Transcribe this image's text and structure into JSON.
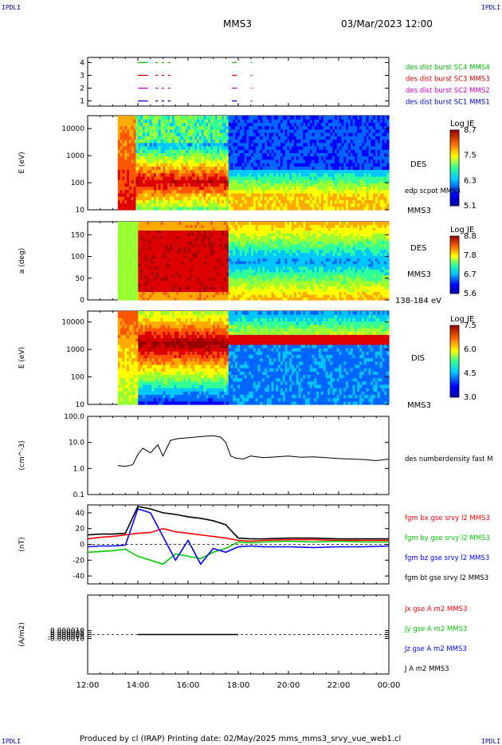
{
  "header": {
    "corner_left_top": "IPDLI",
    "corner_right_top": "IPDLI",
    "corner_left_bottom": "IPDLI",
    "corner_right_bottom": "IPDLI",
    "mission": "MMS3",
    "datetime": "03/Mar/2023 12:00"
  },
  "footer": {
    "produced": "Produced by cl (IRAP)   Printing date: 02/May/2025   mms_mms3_srvy_vue_web1.cl"
  },
  "colors": {
    "mms1": "#0000cc",
    "mms2": "#cc00cc",
    "mms3": "#dd0000",
    "mms4": "#00bb00",
    "bx": "#ff0000",
    "by": "#00cc00",
    "bz": "#0000ff",
    "bt": "#000000"
  },
  "chart_data": [
    {
      "id": "burst",
      "type": "scatter",
      "ylim": [
        0.6,
        4.4
      ],
      "yticks": [
        "1",
        "2",
        "3",
        "4"
      ],
      "series": [
        {
          "name": "des dist burst SC1 MMS1",
          "color": "#0000cc",
          "y": 1,
          "segments": [
            [
              14.0,
              14.4
            ],
            [
              14.7,
              14.8
            ],
            [
              14.95,
              15.05
            ],
            [
              15.2,
              15.3
            ],
            [
              17.75,
              17.95
            ],
            [
              18.5,
              18.55
            ]
          ]
        },
        {
          "name": "des dist burst SC2 MMS2",
          "color": "#cc00cc",
          "y": 2,
          "segments": [
            [
              14.0,
              14.4
            ],
            [
              14.7,
              14.8
            ],
            [
              14.95,
              15.05
            ],
            [
              15.2,
              15.3
            ],
            [
              17.75,
              17.95
            ],
            [
              18.5,
              18.55
            ]
          ]
        },
        {
          "name": "des dist burst SC3 MMS3",
          "color": "#dd0000",
          "y": 3,
          "segments": [
            [
              14.0,
              14.4
            ],
            [
              14.7,
              14.8
            ],
            [
              14.95,
              15.05
            ],
            [
              15.2,
              15.3
            ],
            [
              17.75,
              17.95
            ],
            [
              18.5,
              18.55
            ]
          ]
        },
        {
          "name": "des dist burst SC4 MMS4",
          "color": "#00bb00",
          "y": 4,
          "segments": [
            [
              14.0,
              14.4
            ],
            [
              14.7,
              14.8
            ],
            [
              14.95,
              15.05
            ],
            [
              15.2,
              15.3
            ],
            [
              17.75,
              17.95
            ],
            [
              18.5,
              18.55
            ]
          ]
        }
      ]
    },
    {
      "id": "des_energy",
      "type": "heatmap",
      "ylabel": "E (eV)",
      "yscale": "log",
      "ylim": [
        10,
        30000
      ],
      "yticks": [
        "10",
        "100",
        "1000",
        "10000"
      ],
      "colorbar_label": "Log JE",
      "colorbar_ticks": [
        "5.1",
        "6.3",
        "7.5",
        "8.7"
      ],
      "right_label": "DES",
      "right_note": "edp scpot MMS3",
      "right_bottom": "MMS3",
      "data_start_hour": 13.2
    },
    {
      "id": "des_pitch",
      "type": "heatmap",
      "ylabel": "a (deg)",
      "ylim": [
        0,
        180
      ],
      "yticks": [
        "0",
        "50",
        "100",
        "150"
      ],
      "colorbar_label": "Log JE",
      "colorbar_ticks": [
        "5.6",
        "6.7",
        "7.8",
        "8.8"
      ],
      "right_label": "DES",
      "right_bottom": "MMS3",
      "energy_band": "138-184 eV",
      "data_start_hour": 13.2
    },
    {
      "id": "dis_energy",
      "type": "heatmap",
      "ylabel": "E (eV)",
      "yscale": "log",
      "ylim": [
        10,
        25000
      ],
      "yticks": [
        "10",
        "100",
        "1000",
        "10000"
      ],
      "colorbar_label": "Log JE",
      "colorbar_ticks": [
        "3.0",
        "4.5",
        "6.0",
        "7.5"
      ],
      "right_label": "DIS",
      "right_bottom": "MMS3",
      "data_start_hour": 13.2
    },
    {
      "id": "density",
      "type": "line",
      "ylabel": "(cm^-3)",
      "yscale": "log",
      "ylim": [
        0.1,
        100
      ],
      "yticks": [
        "0.1",
        "1.0",
        "10.0",
        "100.0"
      ],
      "series": [
        {
          "name": "des numberdensity fast M",
          "color": "#000000",
          "x": [
            13.2,
            13.5,
            13.8,
            14.0,
            14.2,
            14.5,
            14.8,
            15.0,
            15.3,
            15.6,
            16.0,
            16.3,
            16.6,
            17.0,
            17.3,
            17.5,
            17.7,
            17.9,
            18.2,
            18.5,
            19.0,
            19.5,
            20.0,
            20.5,
            21.0,
            21.5,
            22.0,
            22.5,
            23.0,
            23.5,
            24.0
          ],
          "y": [
            1.3,
            1.2,
            1.4,
            3.5,
            6.0,
            4.0,
            8.0,
            3.0,
            12.0,
            14.0,
            15.0,
            16.0,
            17.0,
            18.0,
            16.0,
            10.0,
            3.0,
            2.5,
            2.3,
            3.0,
            2.6,
            2.8,
            3.0,
            2.7,
            2.8,
            2.6,
            2.4,
            2.3,
            2.2,
            2.0,
            2.3
          ]
        }
      ]
    },
    {
      "id": "bfield",
      "type": "line",
      "ylabel": "(nT)",
      "ylim": [
        -50,
        50
      ],
      "yticks": [
        "-40",
        "-20",
        "0",
        "20",
        "40"
      ],
      "series": [
        {
          "name": "fgm bx gse srvy l2 MMS3",
          "color": "#ff0000",
          "x": [
            12.0,
            12.5,
            13.0,
            13.5,
            14.0,
            14.5,
            15.0,
            15.5,
            16.0,
            16.5,
            17.0,
            17.5,
            18.0,
            18.5,
            19.0,
            20.0,
            21.0,
            22.0,
            23.0,
            24.0
          ],
          "y": [
            7,
            9,
            10,
            12,
            14,
            15,
            20,
            16,
            14,
            12,
            10,
            8,
            5,
            4,
            5,
            6,
            6,
            5,
            5,
            5
          ]
        },
        {
          "name": "fgm by gse srvy l2 MMS3",
          "color": "#00cc00",
          "x": [
            12.0,
            12.5,
            13.0,
            13.5,
            14.0,
            14.5,
            15.0,
            15.5,
            16.0,
            16.5,
            17.0,
            17.5,
            18.0,
            18.5,
            19.0,
            20.0,
            21.0,
            22.0,
            23.0,
            24.0
          ],
          "y": [
            -10,
            -9,
            -8,
            -6,
            -15,
            -20,
            -25,
            -12,
            -15,
            -18,
            -10,
            -5,
            3,
            2,
            3,
            4,
            3,
            4,
            3,
            3
          ]
        },
        {
          "name": "fgm bz gse srvy l2 MMS3",
          "color": "#0000ff",
          "x": [
            12.0,
            12.5,
            13.0,
            13.5,
            14.0,
            14.5,
            15.0,
            15.5,
            16.0,
            16.5,
            17.0,
            17.5,
            18.0,
            18.5,
            19.0,
            20.0,
            21.0,
            22.0,
            23.0,
            24.0
          ],
          "y": [
            -3,
            -2,
            -2,
            -1,
            45,
            40,
            10,
            -20,
            5,
            -25,
            -5,
            -10,
            -3,
            -2,
            -3,
            -3,
            -4,
            -3,
            -3,
            -2
          ]
        },
        {
          "name": "fgm bt gse srvy l2 MMS3",
          "color": "#000000",
          "x": [
            12.0,
            12.5,
            13.0,
            13.5,
            14.0,
            14.5,
            15.0,
            15.5,
            16.0,
            16.5,
            17.0,
            17.5,
            18.0,
            18.5,
            19.0,
            20.0,
            21.0,
            22.0,
            23.0,
            24.0
          ],
          "y": [
            12,
            13,
            13,
            14,
            48,
            45,
            40,
            38,
            35,
            33,
            30,
            25,
            8,
            7,
            7,
            8,
            8,
            7,
            7,
            7
          ]
        }
      ]
    },
    {
      "id": "current",
      "type": "line",
      "ylabel": "(A/m2)",
      "ylim": [
        -0.0001,
        0.0001
      ],
      "yticks": [
        "-0.000010",
        "-0.000005",
        "0.000000",
        "0.000005",
        "0.000010"
      ],
      "xticks": [
        "12:00",
        "14:00",
        "16:00",
        "18:00",
        "20:00",
        "22:00",
        "00:00"
      ],
      "xlim": [
        12,
        24
      ],
      "series": [
        {
          "name": "Jx gse A m2 MMS3",
          "color": "#ff0000"
        },
        {
          "name": "Jy gse A m2 MMS3",
          "color": "#00cc00"
        },
        {
          "name": "Jz gse A m2 MMS3",
          "color": "#0000ff"
        },
        {
          "name": "J A m2 MMS3",
          "color": "#000000"
        }
      ]
    }
  ]
}
